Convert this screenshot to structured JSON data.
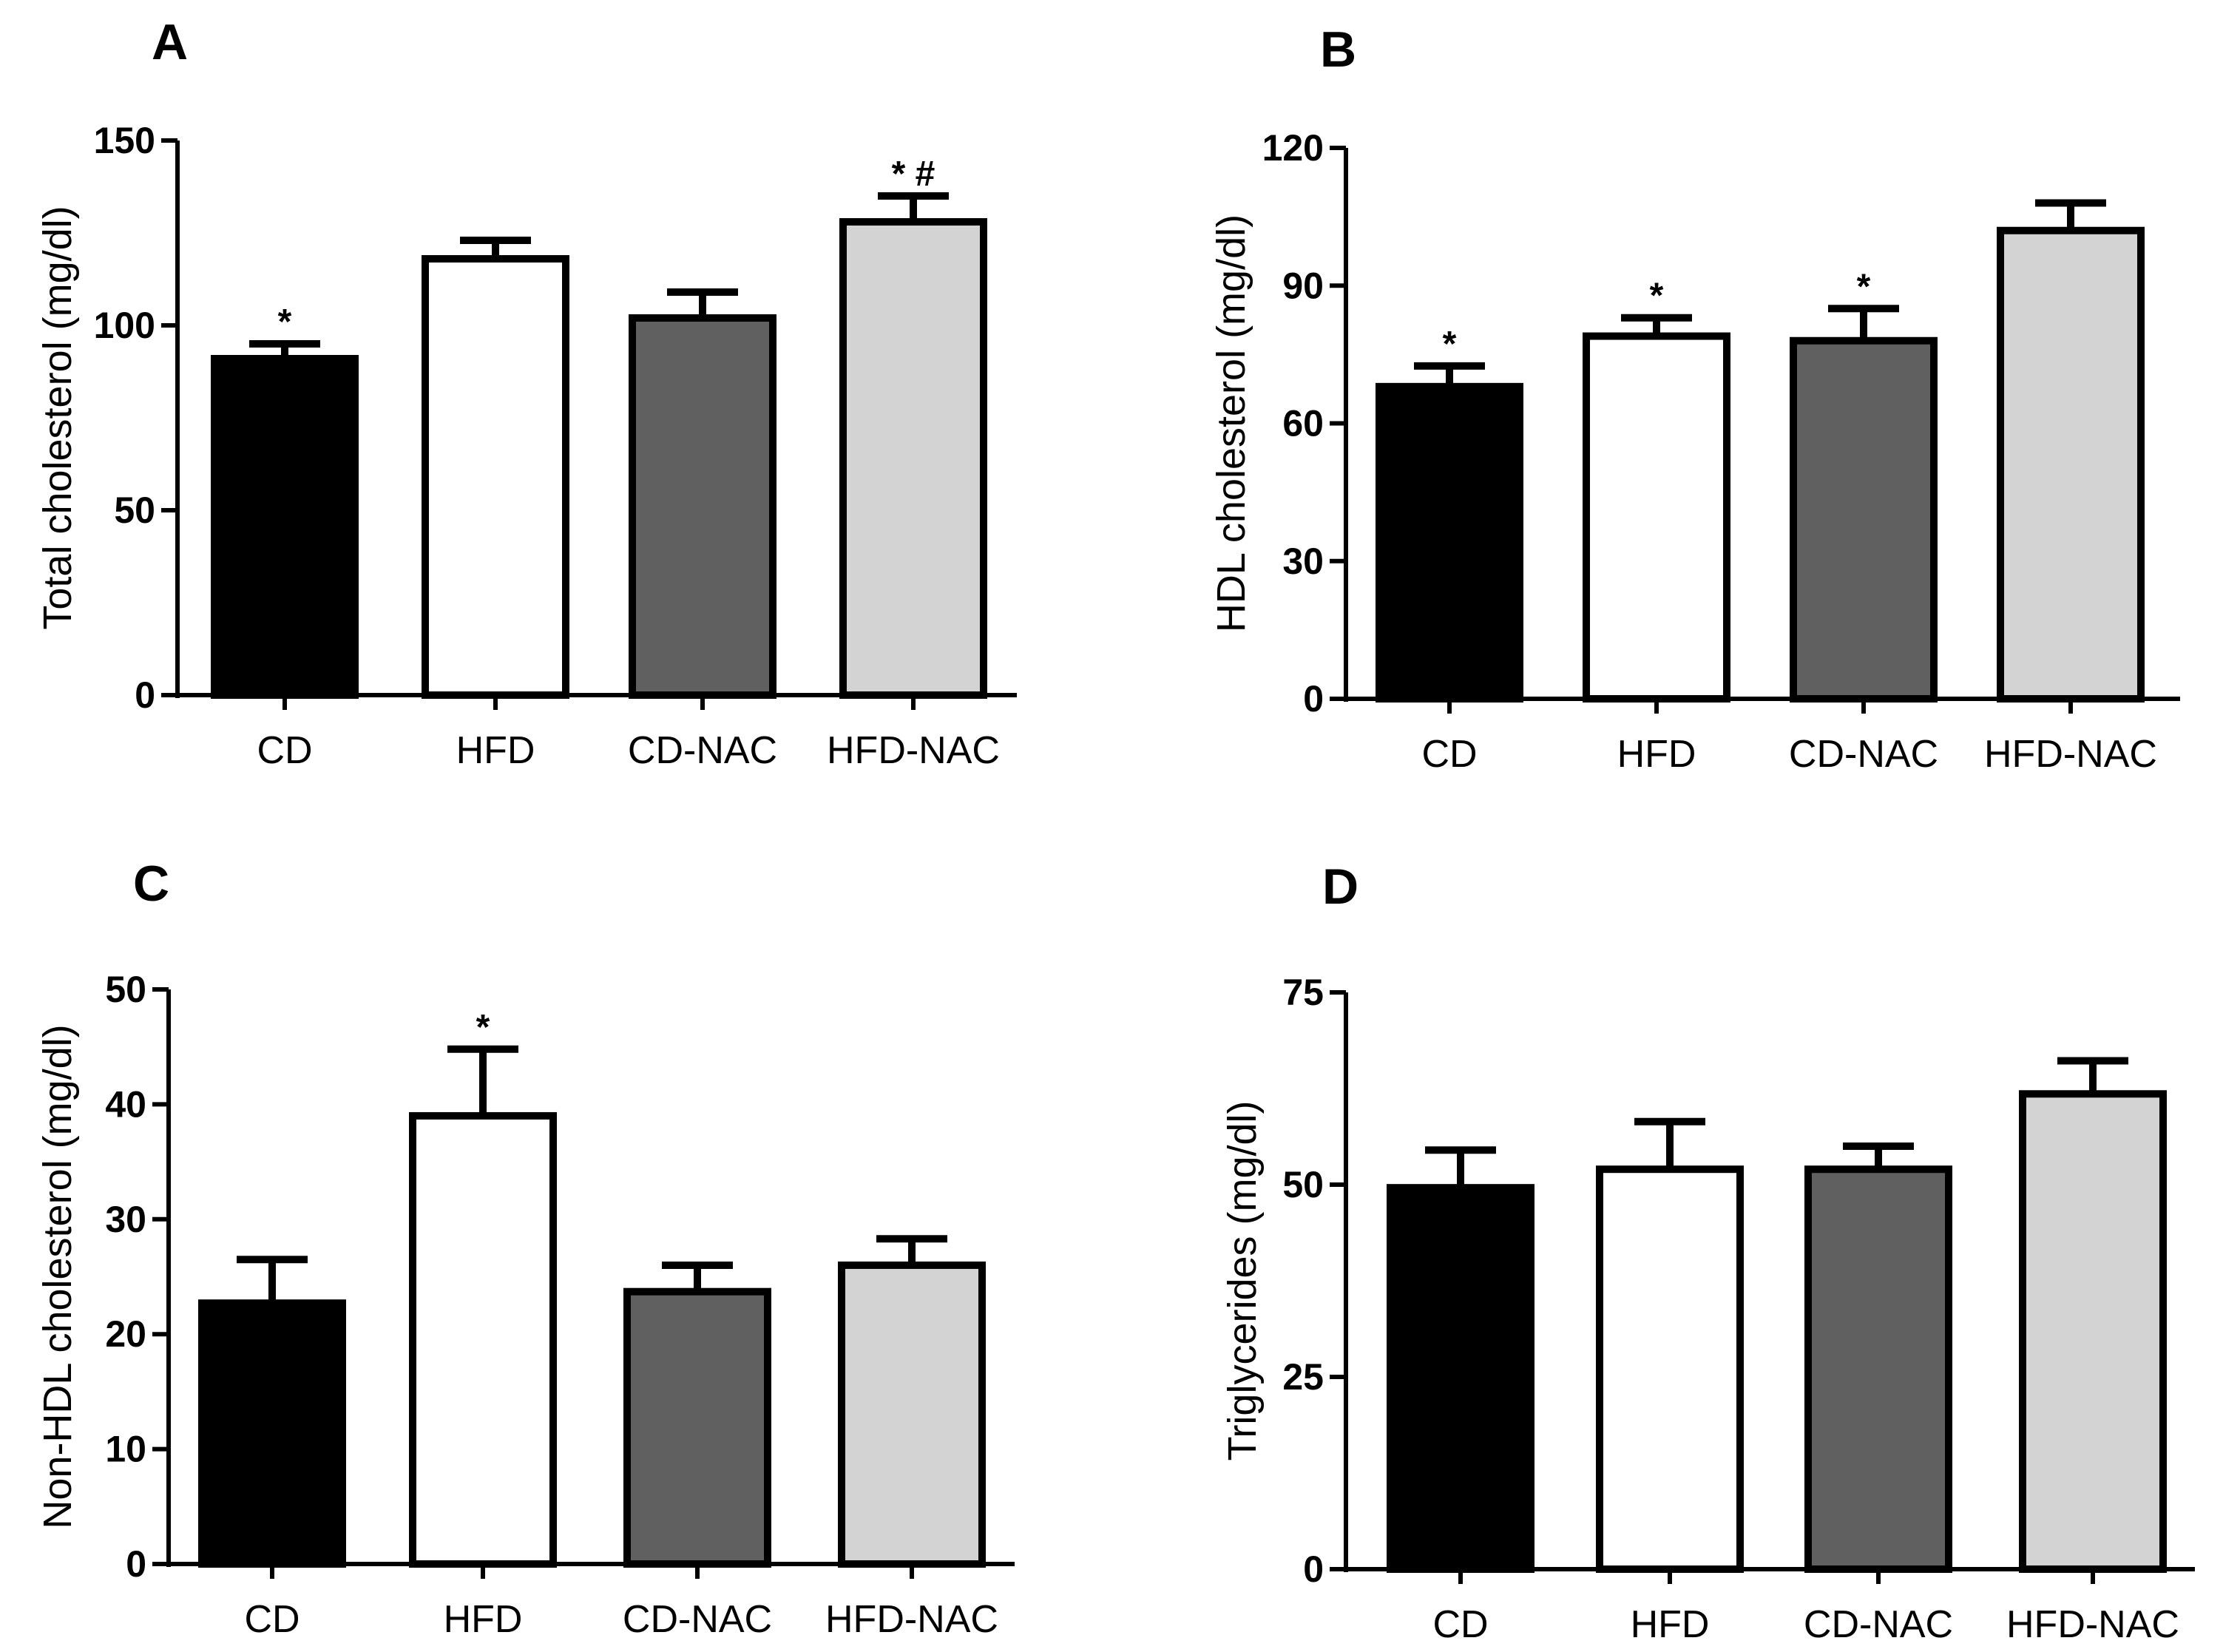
{
  "colors": {
    "CD": "#000000",
    "HFD": "#ffffff",
    "CD-NAC": "#606060",
    "HFD-NAC": "#d3d3d3",
    "outline": "#000000"
  },
  "chart_data": [
    {
      "panel": "A",
      "type": "bar",
      "categories": [
        "CD",
        "HFD",
        "CD-NAC",
        "HFD-NAC"
      ],
      "values": [
        91,
        118,
        102,
        128
      ],
      "errors": [
        4,
        5,
        7,
        7
      ],
      "significance": [
        "*",
        "",
        "",
        "*  #"
      ],
      "ylabel": "Total cholesterol (mg/dl)",
      "ylim": [
        0,
        150
      ],
      "yticks": [
        0,
        50,
        100,
        150
      ],
      "ytick_labels": [
        "0",
        "50",
        "100",
        "150"
      ]
    },
    {
      "panel": "B",
      "type": "bar",
      "categories": [
        "CD",
        "HFD",
        "CD-NAC",
        "HFD-NAC"
      ],
      "values": [
        68,
        79,
        78,
        102
      ],
      "errors": [
        4.5,
        4,
        7,
        6
      ],
      "significance": [
        "*",
        "*",
        "*",
        ""
      ],
      "ylabel": "HDL cholesterol (mg/dl)",
      "ylim": [
        0,
        120
      ],
      "yticks": [
        0,
        30,
        60,
        90,
        120
      ],
      "ytick_labels": [
        "0",
        "30",
        "60",
        "90",
        "120"
      ]
    },
    {
      "panel": "C",
      "type": "bar",
      "categories": [
        "CD",
        "HFD",
        "CD-NAC",
        "HFD-NAC"
      ],
      "values": [
        22.7,
        39,
        23.7,
        26
      ],
      "errors": [
        3.8,
        5.8,
        2.3,
        2.3
      ],
      "significance": [
        "",
        "*",
        "",
        ""
      ],
      "ylabel": "Non-HDL cholesterol (mg/dl)",
      "ylim": [
        0,
        50
      ],
      "yticks": [
        0,
        10,
        20,
        30,
        40,
        50
      ],
      "ytick_labels": [
        "0",
        "10",
        "20",
        "30",
        "40",
        "50"
      ]
    },
    {
      "panel": "D",
      "type": "bar",
      "categories": [
        "CD",
        "HFD",
        "CD-NAC",
        "HFD-NAC"
      ],
      "values": [
        49.6,
        52,
        52,
        61.8
      ],
      "errors": [
        4.9,
        6.2,
        3,
        4.3
      ],
      "significance": [
        "",
        "",
        "",
        ""
      ],
      "ylabel": "Triglycerides (mg/dl)",
      "ylim": [
        0,
        75
      ],
      "yticks": [
        0,
        25,
        50,
        75
      ],
      "ytick_labels": [
        "0",
        "25",
        "50",
        "75"
      ]
    }
  ]
}
